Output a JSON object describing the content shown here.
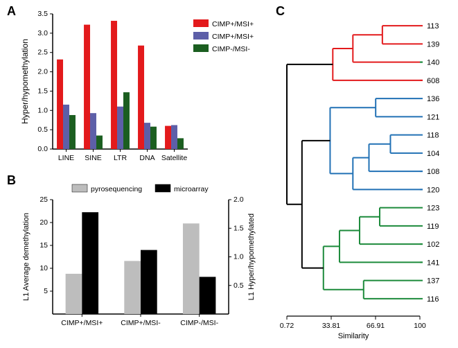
{
  "panelA": {
    "label": "A",
    "type": "bar",
    "ylabel": "Hyper/hypomethylation",
    "ylabel_fontsize": 12,
    "categories": [
      "LINE",
      "SINE",
      "LTR",
      "DNA",
      "Satellite"
    ],
    "cat_fontsize": 10.5,
    "ylim": [
      0,
      3.5
    ],
    "ytick_step": 0.5,
    "ytick_fontsize": 10.5,
    "series": [
      {
        "name": "CIMP+/MSI+",
        "color": "#e31a1c",
        "values": [
          2.32,
          3.22,
          3.32,
          2.68,
          0.6
        ]
      },
      {
        "name": "CIMP+/MSI+",
        "color": "#5d5fa8",
        "values": [
          1.15,
          0.93,
          1.1,
          0.68,
          0.62
        ]
      },
      {
        "name": "CIMP-/MSI-",
        "color": "#1b5e20",
        "values": [
          0.88,
          0.35,
          1.47,
          0.58,
          0.28
        ]
      }
    ],
    "legend_fontsize": 10.5,
    "axis_color": "#000000",
    "bar_group_gap": 0.3,
    "bar_width": 0.23
  },
  "panelB": {
    "label": "B",
    "type": "bar",
    "ylabel_left": "L1 Average demethylation",
    "ylabel_right": "L1 Hyper/hypomethylated",
    "ylabel_fontsize": 11,
    "categories": [
      "CIMP+/MSI+",
      "CIMP+/MSI-",
      "CIMP-/MSI-"
    ],
    "cat_fontsize": 10.5,
    "ylim_left": [
      0,
      25
    ],
    "ytick_left": [
      5,
      10,
      15,
      20,
      25
    ],
    "ylim_right": [
      0,
      2.0
    ],
    "ytick_right": [
      0.5,
      1.0,
      1.5,
      2.0
    ],
    "ytick_fontsize": 10.5,
    "series": [
      {
        "name": "pyrosequencing",
        "color": "#bdbdbd",
        "axis": "left",
        "values": [
          8.8,
          11.6,
          19.8
        ]
      },
      {
        "name": "microarray",
        "color": "#000000",
        "axis": "right",
        "values": [
          1.78,
          1.12,
          0.65
        ]
      }
    ],
    "legend_fontsize": 10.5,
    "axis_color": "#000000"
  },
  "panelC": {
    "label": "C",
    "type": "tree",
    "xlabel": "Similarity",
    "xlabel_fontsize": 11,
    "xticks": [
      0.72,
      33.81,
      66.91,
      100
    ],
    "xtick_fontsize": 10.5,
    "leaf_label_fontsize": 11,
    "axis_color": "#000000",
    "root_color": "#000000",
    "nodes": [
      {
        "label": "113",
        "color": "#e31a1c"
      },
      {
        "label": "139",
        "color": "#e31a1c"
      },
      {
        "label": "140",
        "color": "#1b8a3a"
      },
      {
        "label": "608",
        "color": "#e31a1c"
      },
      {
        "label": "136",
        "color": "#2171b5"
      },
      {
        "label": "121",
        "color": "#2171b5"
      },
      {
        "label": "118",
        "color": "#2171b5"
      },
      {
        "label": "104",
        "color": "#2171b5"
      },
      {
        "label": "108",
        "color": "#2171b5"
      },
      {
        "label": "120",
        "color": "#2171b5"
      },
      {
        "label": "123",
        "color": "#1b8a3a"
      },
      {
        "label": "119",
        "color": "#1b8a3a"
      },
      {
        "label": "102",
        "color": "#1b8a3a"
      },
      {
        "label": "141",
        "color": "#1b8a3a"
      },
      {
        "label": "137",
        "color": "#1b8a3a"
      },
      {
        "label": "116",
        "color": "#1b8a3a"
      }
    ],
    "edges": [
      {
        "leaves": [
          0,
          1
        ],
        "join_x": 72,
        "color": "#e31a1c"
      },
      {
        "leaves": [
          2
        ],
        "join_x": 100,
        "color": "#1b8a3a"
      },
      {
        "merge": [
          [
            0,
            1
          ],
          [
            2
          ]
        ],
        "join_x": 50,
        "color": "#e31a1c"
      },
      {
        "leaves": [
          3
        ],
        "join_x": 100,
        "color": "#e31a1c"
      },
      {
        "merge": [
          [
            0,
            1,
            2
          ],
          [
            3
          ]
        ],
        "join_x": 35,
        "color": "#e31a1c"
      },
      {
        "leaves": [
          4,
          5
        ],
        "join_x": 67,
        "color": "#2171b5"
      },
      {
        "leaves": [
          6,
          7
        ],
        "join_x": 78,
        "color": "#2171b5"
      },
      {
        "leaves": [
          8
        ],
        "join_x": 100,
        "color": "#2171b5"
      },
      {
        "merge": [
          [
            6,
            7
          ],
          [
            8
          ]
        ],
        "join_x": 62,
        "color": "#2171b5"
      },
      {
        "leaves": [
          9
        ],
        "join_x": 100,
        "color": "#2171b5"
      },
      {
        "merge": [
          [
            6,
            7,
            8
          ],
          [
            9
          ]
        ],
        "join_x": 50,
        "color": "#2171b5"
      },
      {
        "merge": [
          [
            4,
            5
          ],
          [
            6,
            7,
            8,
            9
          ]
        ],
        "join_x": 33,
        "color": "#2171b5"
      },
      {
        "leaves": [
          10,
          11
        ],
        "join_x": 70,
        "color": "#1b8a3a"
      },
      {
        "leaves": [
          12
        ],
        "join_x": 100,
        "color": "#1b8a3a"
      },
      {
        "merge": [
          [
            10,
            11
          ],
          [
            12
          ]
        ],
        "join_x": 55,
        "color": "#1b8a3a"
      },
      {
        "leaves": [
          13
        ],
        "join_x": 100,
        "color": "#1b8a3a"
      },
      {
        "merge": [
          [
            10,
            11,
            12
          ],
          [
            13
          ]
        ],
        "join_x": 40,
        "color": "#1b8a3a"
      },
      {
        "leaves": [
          14,
          15
        ],
        "join_x": 58,
        "color": "#1b8a3a"
      },
      {
        "merge": [
          [
            10,
            11,
            12,
            13
          ],
          [
            14,
            15
          ]
        ],
        "join_x": 28,
        "color": "#1b8a3a"
      },
      {
        "merge": [
          [
            4,
            5,
            6,
            7,
            8,
            9
          ],
          [
            10,
            11,
            12,
            13,
            14,
            15
          ]
        ],
        "join_x": 12,
        "color": "#000000"
      },
      {
        "merge": [
          [
            0,
            1,
            2,
            3
          ],
          [
            4,
            5,
            6,
            7,
            8,
            9,
            10,
            11,
            12,
            13,
            14,
            15
          ]
        ],
        "join_x": 0.72,
        "color": "#000000"
      }
    ]
  }
}
